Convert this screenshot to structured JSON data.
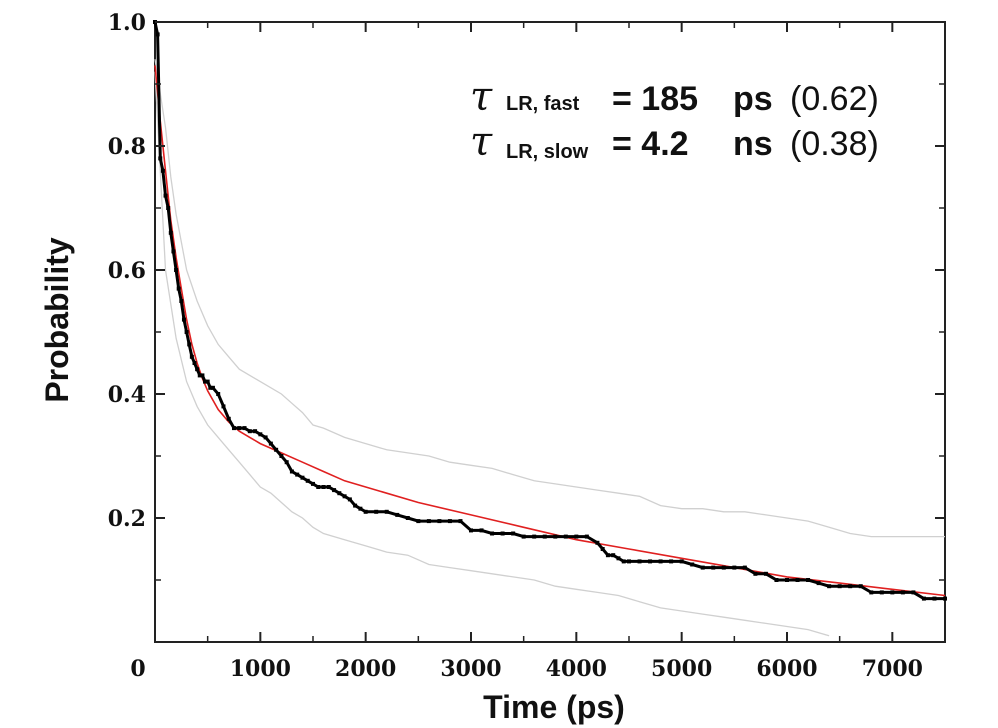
{
  "chart_data": {
    "type": "line",
    "xlabel": "Time (ps)",
    "ylabel": "Probability",
    "xlim": [
      0,
      7500
    ],
    "ylim": [
      0,
      1.0
    ],
    "x_ticks": [
      0,
      1000,
      2000,
      3000,
      4000,
      5000,
      6000,
      7000
    ],
    "x_tick_labels": [
      "0",
      "1000",
      "2000",
      "3000",
      "4000",
      "5000",
      "6000",
      "7000"
    ],
    "y_ticks": [
      0.2,
      0.4,
      0.6,
      0.8,
      1.0
    ],
    "y_tick_labels": [
      "0.2",
      "0.4",
      "0.6",
      "0.8",
      "1.0"
    ],
    "grid": false,
    "annotations": {
      "line1": {
        "tau": "τ",
        "sub": "LR, fast",
        "eq": "= 185",
        "unit": "ps",
        "frac": "(0.62)"
      },
      "line2": {
        "tau": "τ",
        "sub": "LR, slow",
        "eq": "= 4.2",
        "unit": "ns",
        "frac": "(0.38)"
      }
    },
    "series": [
      {
        "style": "points",
        "color": "#000000",
        "points": [
          [
            0,
            1.0
          ],
          [
            25,
            0.98
          ],
          [
            50,
            0.78
          ],
          [
            75,
            0.76
          ],
          [
            100,
            0.72
          ],
          [
            125,
            0.7
          ],
          [
            150,
            0.66
          ],
          [
            175,
            0.63
          ],
          [
            200,
            0.6
          ],
          [
            225,
            0.57
          ],
          [
            250,
            0.55
          ],
          [
            275,
            0.52
          ],
          [
            300,
            0.5
          ],
          [
            325,
            0.48
          ],
          [
            350,
            0.46
          ],
          [
            375,
            0.45
          ],
          [
            400,
            0.44
          ],
          [
            425,
            0.43
          ],
          [
            450,
            0.43
          ],
          [
            475,
            0.42
          ],
          [
            500,
            0.42
          ],
          [
            525,
            0.41
          ],
          [
            550,
            0.41
          ],
          [
            600,
            0.4
          ],
          [
            650,
            0.38
          ],
          [
            700,
            0.36
          ],
          [
            750,
            0.345
          ],
          [
            800,
            0.345
          ],
          [
            850,
            0.345
          ],
          [
            900,
            0.34
          ],
          [
            950,
            0.34
          ],
          [
            1000,
            0.335
          ],
          [
            1050,
            0.33
          ],
          [
            1100,
            0.32
          ],
          [
            1150,
            0.31
          ],
          [
            1200,
            0.3
          ],
          [
            1250,
            0.29
          ],
          [
            1300,
            0.275
          ],
          [
            1350,
            0.27
          ],
          [
            1400,
            0.265
          ],
          [
            1450,
            0.26
          ],
          [
            1500,
            0.255
          ],
          [
            1550,
            0.25
          ],
          [
            1600,
            0.25
          ],
          [
            1650,
            0.25
          ],
          [
            1700,
            0.245
          ],
          [
            1750,
            0.24
          ],
          [
            1800,
            0.235
          ],
          [
            1850,
            0.23
          ],
          [
            1900,
            0.22
          ],
          [
            1950,
            0.215
          ],
          [
            2000,
            0.21
          ],
          [
            2100,
            0.21
          ],
          [
            2200,
            0.21
          ],
          [
            2300,
            0.205
          ],
          [
            2400,
            0.2
          ],
          [
            2500,
            0.195
          ],
          [
            2600,
            0.195
          ],
          [
            2700,
            0.195
          ],
          [
            2800,
            0.195
          ],
          [
            2900,
            0.195
          ],
          [
            3000,
            0.18
          ],
          [
            3100,
            0.18
          ],
          [
            3200,
            0.175
          ],
          [
            3300,
            0.175
          ],
          [
            3400,
            0.175
          ],
          [
            3500,
            0.17
          ],
          [
            3600,
            0.17
          ],
          [
            3700,
            0.17
          ],
          [
            3800,
            0.17
          ],
          [
            3900,
            0.17
          ],
          [
            4000,
            0.17
          ],
          [
            4100,
            0.17
          ],
          [
            4200,
            0.16
          ],
          [
            4250,
            0.15
          ],
          [
            4300,
            0.14
          ],
          [
            4350,
            0.14
          ],
          [
            4400,
            0.135
          ],
          [
            4450,
            0.13
          ],
          [
            4500,
            0.13
          ],
          [
            4600,
            0.13
          ],
          [
            4700,
            0.13
          ],
          [
            4800,
            0.13
          ],
          [
            4900,
            0.13
          ],
          [
            5000,
            0.13
          ],
          [
            5100,
            0.125
          ],
          [
            5200,
            0.12
          ],
          [
            5300,
            0.12
          ],
          [
            5400,
            0.12
          ],
          [
            5500,
            0.12
          ],
          [
            5600,
            0.12
          ],
          [
            5700,
            0.11
          ],
          [
            5800,
            0.11
          ],
          [
            5900,
            0.1
          ],
          [
            6000,
            0.1
          ],
          [
            6100,
            0.1
          ],
          [
            6200,
            0.1
          ],
          [
            6300,
            0.095
          ],
          [
            6400,
            0.09
          ],
          [
            6500,
            0.09
          ],
          [
            6600,
            0.09
          ],
          [
            6700,
            0.09
          ],
          [
            6800,
            0.08
          ],
          [
            6900,
            0.08
          ],
          [
            7000,
            0.08
          ],
          [
            7100,
            0.08
          ],
          [
            7200,
            0.08
          ],
          [
            7300,
            0.07
          ],
          [
            7400,
            0.07
          ],
          [
            7500,
            0.07
          ]
        ]
      },
      {
        "style": "line",
        "color": "#e02020",
        "points": [
          [
            0,
            0.93
          ],
          [
            50,
            0.84
          ],
          [
            100,
            0.76
          ],
          [
            150,
            0.68
          ],
          [
            200,
            0.62
          ],
          [
            250,
            0.57
          ],
          [
            300,
            0.52
          ],
          [
            350,
            0.48
          ],
          [
            400,
            0.45
          ],
          [
            450,
            0.425
          ],
          [
            500,
            0.405
          ],
          [
            600,
            0.375
          ],
          [
            700,
            0.355
          ],
          [
            800,
            0.34
          ],
          [
            900,
            0.33
          ],
          [
            1000,
            0.32
          ],
          [
            1200,
            0.305
          ],
          [
            1400,
            0.29
          ],
          [
            1600,
            0.275
          ],
          [
            1800,
            0.26
          ],
          [
            2000,
            0.25
          ],
          [
            2500,
            0.225
          ],
          [
            3000,
            0.205
          ],
          [
            3500,
            0.185
          ],
          [
            4000,
            0.165
          ],
          [
            4500,
            0.15
          ],
          [
            5000,
            0.135
          ],
          [
            5500,
            0.12
          ],
          [
            6000,
            0.105
          ],
          [
            6500,
            0.095
          ],
          [
            7000,
            0.085
          ],
          [
            7500,
            0.075
          ]
        ]
      },
      {
        "style": "line",
        "color": "#d0d0d0",
        "points": [
          [
            0,
            0.94
          ],
          [
            100,
            0.83
          ],
          [
            150,
            0.75
          ],
          [
            200,
            0.69
          ],
          [
            300,
            0.6
          ],
          [
            400,
            0.55
          ],
          [
            500,
            0.51
          ],
          [
            600,
            0.48
          ],
          [
            700,
            0.46
          ],
          [
            800,
            0.44
          ],
          [
            1000,
            0.42
          ],
          [
            1200,
            0.4
          ],
          [
            1300,
            0.385
          ],
          [
            1400,
            0.37
          ],
          [
            1500,
            0.35
          ],
          [
            1600,
            0.345
          ],
          [
            1800,
            0.33
          ],
          [
            2000,
            0.32
          ],
          [
            2200,
            0.31
          ],
          [
            2400,
            0.305
          ],
          [
            2600,
            0.3
          ],
          [
            2800,
            0.29
          ],
          [
            3000,
            0.285
          ],
          [
            3200,
            0.28
          ],
          [
            3400,
            0.27
          ],
          [
            3600,
            0.26
          ],
          [
            3800,
            0.255
          ],
          [
            4000,
            0.25
          ],
          [
            4200,
            0.245
          ],
          [
            4400,
            0.24
          ],
          [
            4600,
            0.235
          ],
          [
            4800,
            0.22
          ],
          [
            5000,
            0.215
          ],
          [
            5200,
            0.215
          ],
          [
            5400,
            0.21
          ],
          [
            5600,
            0.21
          ],
          [
            5800,
            0.205
          ],
          [
            6000,
            0.2
          ],
          [
            6200,
            0.195
          ],
          [
            6400,
            0.185
          ],
          [
            6600,
            0.175
          ],
          [
            6800,
            0.17
          ],
          [
            7000,
            0.17
          ],
          [
            7500,
            0.17
          ]
        ]
      },
      {
        "style": "line",
        "color": "#d0d0d0",
        "points": [
          [
            0,
            0.92
          ],
          [
            100,
            0.6
          ],
          [
            200,
            0.49
          ],
          [
            300,
            0.42
          ],
          [
            400,
            0.38
          ],
          [
            500,
            0.35
          ],
          [
            600,
            0.33
          ],
          [
            700,
            0.31
          ],
          [
            800,
            0.29
          ],
          [
            900,
            0.27
          ],
          [
            1000,
            0.25
          ],
          [
            1100,
            0.24
          ],
          [
            1200,
            0.225
          ],
          [
            1300,
            0.21
          ],
          [
            1400,
            0.2
          ],
          [
            1500,
            0.185
          ],
          [
            1600,
            0.175
          ],
          [
            1800,
            0.165
          ],
          [
            2000,
            0.155
          ],
          [
            2200,
            0.145
          ],
          [
            2400,
            0.14
          ],
          [
            2600,
            0.125
          ],
          [
            2800,
            0.12
          ],
          [
            3000,
            0.115
          ],
          [
            3200,
            0.11
          ],
          [
            3400,
            0.105
          ],
          [
            3600,
            0.1
          ],
          [
            3800,
            0.09
          ],
          [
            4000,
            0.085
          ],
          [
            4200,
            0.08
          ],
          [
            4400,
            0.075
          ],
          [
            4600,
            0.065
          ],
          [
            4800,
            0.055
          ],
          [
            5000,
            0.05
          ],
          [
            5200,
            0.045
          ],
          [
            5400,
            0.04
          ],
          [
            5600,
            0.035
          ],
          [
            5800,
            0.03
          ],
          [
            6000,
            0.025
          ],
          [
            6200,
            0.02
          ],
          [
            6400,
            0.01
          ]
        ]
      }
    ]
  }
}
